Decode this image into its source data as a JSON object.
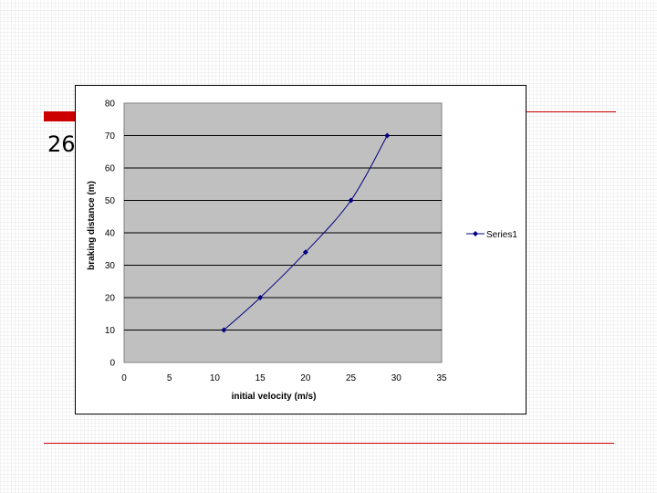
{
  "slide": {
    "number_text": "26",
    "accent_color": "#cc0000"
  },
  "chart_data": {
    "type": "line",
    "title": "",
    "xlabel": "initial velocity (m/s)",
    "ylabel": "braking distance (m)",
    "xlim": [
      0,
      35
    ],
    "ylim": [
      0,
      80
    ],
    "x_ticks": [
      "0",
      "5",
      "10",
      "15",
      "20",
      "25",
      "30",
      "35"
    ],
    "y_ticks": [
      "0",
      "10",
      "20",
      "30",
      "40",
      "50",
      "60",
      "70",
      "80"
    ],
    "series": [
      {
        "name": "Series1",
        "color": "#000080",
        "marker": "diamond",
        "smooth": true,
        "x": [
          11,
          15,
          20,
          25,
          29
        ],
        "y": [
          10,
          20,
          34,
          50,
          70
        ]
      }
    ],
    "legend": {
      "position": "right"
    },
    "grid": {
      "horizontal_major": true
    },
    "plot_background": "#c0c0c0"
  }
}
